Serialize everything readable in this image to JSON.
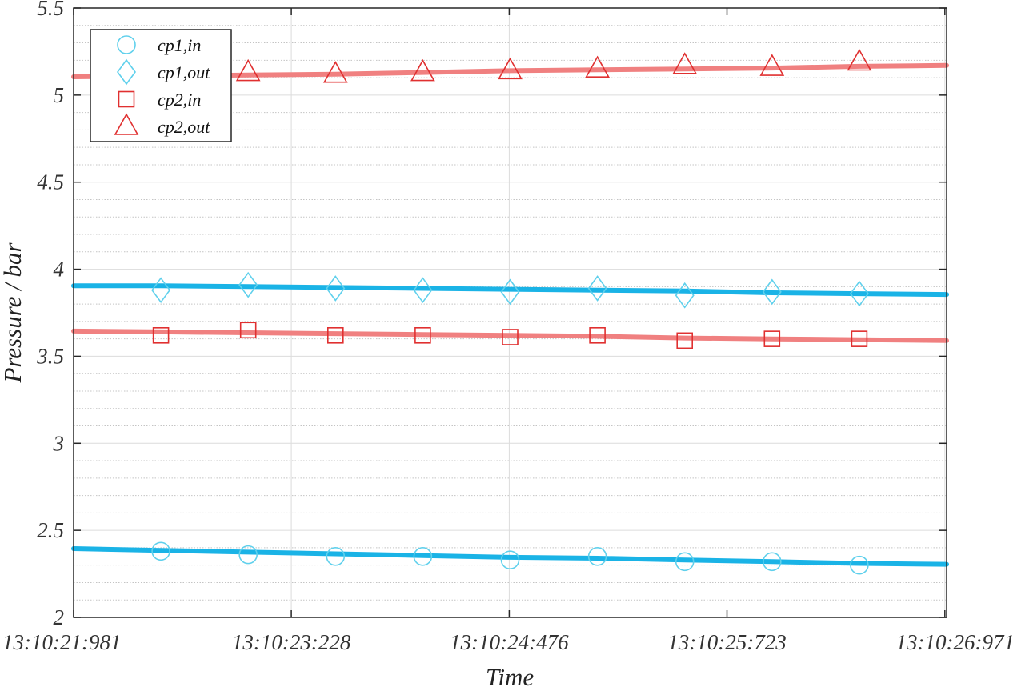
{
  "chart_data": {
    "type": "line",
    "xlabel": "Time",
    "ylabel": "Pressure / bar",
    "xlim": [
      0,
      5.0
    ],
    "ylim": [
      2,
      5.5
    ],
    "x_ticks": [
      {
        "value": 0.0,
        "label": "13:10:21:981"
      },
      {
        "value": 1.247,
        "label": "13:10:23:228"
      },
      {
        "value": 2.495,
        "label": "13:10:24:476"
      },
      {
        "value": 3.742,
        "label": "13:10:25:723"
      },
      {
        "value": 4.99,
        "label": "13:10:26:971"
      }
    ],
    "y_ticks": [
      {
        "value": 2,
        "label": "2"
      },
      {
        "value": 2.5,
        "label": "2.5"
      },
      {
        "value": 3,
        "label": "3"
      },
      {
        "value": 3.5,
        "label": "3.5"
      },
      {
        "value": 4,
        "label": "4"
      },
      {
        "value": 4.5,
        "label": "4.5"
      },
      {
        "value": 5,
        "label": "5"
      },
      {
        "value": 5.5,
        "label": "5.5"
      }
    ],
    "grid": true,
    "minor_grid_y": true,
    "legend_position": "top-left",
    "series": [
      {
        "name": "cp1,in",
        "marker": "circle",
        "line_color": "#1ab3e6",
        "marker_color": "#5fd0ec",
        "line": {
          "x": [
            0,
            0.5,
            1.0,
            1.5,
            2.0,
            2.5,
            3.0,
            3.5,
            4.0,
            4.5,
            5.0
          ],
          "y": [
            2.395,
            2.385,
            2.375,
            2.365,
            2.355,
            2.345,
            2.34,
            2.33,
            2.32,
            2.31,
            2.305
          ]
        },
        "markers": {
          "x": [
            0.5,
            1.0,
            1.5,
            2.0,
            2.5,
            3.0,
            3.5,
            4.0,
            4.5
          ],
          "y": [
            2.38,
            2.36,
            2.35,
            2.35,
            2.33,
            2.35,
            2.32,
            2.32,
            2.3
          ]
        }
      },
      {
        "name": "cp1,out",
        "marker": "diamond",
        "line_color": "#1ab3e6",
        "marker_color": "#5fd0ec",
        "line": {
          "x": [
            0,
            0.5,
            1.0,
            1.5,
            2.0,
            2.5,
            3.0,
            3.5,
            4.0,
            4.5,
            5.0
          ],
          "y": [
            3.905,
            3.905,
            3.9,
            3.895,
            3.89,
            3.885,
            3.88,
            3.875,
            3.865,
            3.86,
            3.855
          ]
        },
        "markers": {
          "x": [
            0.5,
            1.0,
            1.5,
            2.0,
            2.5,
            3.0,
            3.5,
            4.0,
            4.5
          ],
          "y": [
            3.88,
            3.91,
            3.89,
            3.88,
            3.87,
            3.89,
            3.85,
            3.87,
            3.86
          ]
        }
      },
      {
        "name": "cp2,in",
        "marker": "square",
        "line_color": "#f08080",
        "marker_color": "#e03030",
        "line": {
          "x": [
            0,
            0.5,
            1.0,
            1.5,
            2.0,
            2.5,
            3.0,
            3.5,
            4.0,
            4.5,
            5.0
          ],
          "y": [
            3.645,
            3.64,
            3.635,
            3.63,
            3.625,
            3.62,
            3.615,
            3.605,
            3.6,
            3.595,
            3.59
          ]
        },
        "markers": {
          "x": [
            0.5,
            1.0,
            1.5,
            2.0,
            2.5,
            3.0,
            3.5,
            4.0,
            4.5
          ],
          "y": [
            3.62,
            3.65,
            3.62,
            3.62,
            3.61,
            3.62,
            3.59,
            3.6,
            3.6
          ]
        }
      },
      {
        "name": "cp2,out",
        "marker": "triangle",
        "line_color": "#f08080",
        "marker_color": "#e03030",
        "line": {
          "x": [
            0,
            0.5,
            1.0,
            1.5,
            2.0,
            2.5,
            3.0,
            3.5,
            4.0,
            4.5,
            5.0
          ],
          "y": [
            5.105,
            5.11,
            5.115,
            5.12,
            5.13,
            5.14,
            5.145,
            5.15,
            5.155,
            5.165,
            5.17
          ]
        },
        "markers": {
          "x": [
            1.0,
            1.5,
            2.0,
            2.5,
            3.0,
            3.5,
            4.0,
            4.5
          ],
          "y": [
            5.13,
            5.12,
            5.13,
            5.14,
            5.15,
            5.17,
            5.16,
            5.19
          ]
        }
      }
    ]
  }
}
